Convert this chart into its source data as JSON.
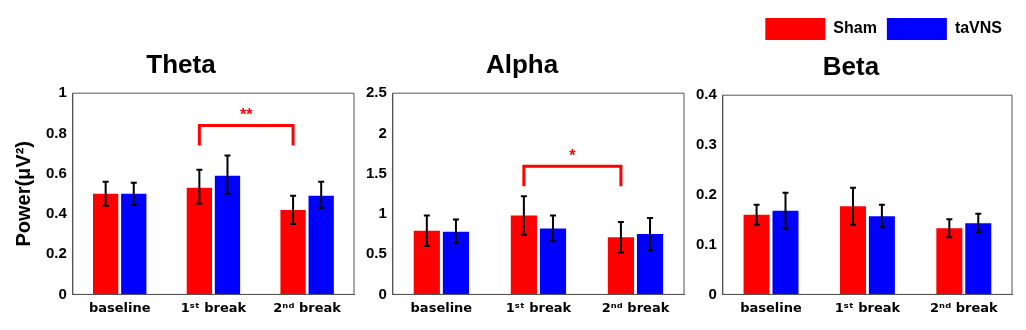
{
  "chart_data": [
    {
      "type": "bar",
      "title": "Theta",
      "ylabel": "Power(μV²)",
      "categories": [
        "baseline",
        "1ˢᵗ break",
        "2ⁿᵈ break"
      ],
      "series": [
        {
          "color": "#ff0000",
          "values": [
            0.5,
            0.53,
            0.42
          ],
          "errors": [
            [
              0.44,
              0.56
            ],
            [
              0.45,
              0.62
            ],
            [
              0.35,
              0.49
            ]
          ]
        },
        {
          "color": "#0000ff",
          "values": [
            0.5,
            0.59,
            0.49
          ],
          "errors": [
            [
              0.445,
              0.555
            ],
            [
              0.5,
              0.69
            ],
            [
              0.43,
              0.56
            ]
          ]
        }
      ],
      "ylim": [
        0,
        1
      ],
      "yticks": [
        0,
        0.2,
        0.4,
        0.6,
        0.8,
        1
      ],
      "grid": false,
      "legend": false,
      "annotations": [
        "**"
      ]
    },
    {
      "type": "bar",
      "title": "Alpha",
      "categories": [
        "baseline",
        "1ˢᵗ break",
        "2ⁿᵈ break"
      ],
      "series": [
        {
          "color": "#ff0000",
          "values": [
            0.79,
            0.98,
            0.71
          ],
          "errors": [
            [
              0.6,
              0.98
            ],
            [
              0.74,
              1.22
            ],
            [
              0.52,
              0.9
            ]
          ]
        },
        {
          "color": "#0000ff",
          "values": [
            0.78,
            0.82,
            0.75
          ],
          "errors": [
            [
              0.64,
              0.93
            ],
            [
              0.66,
              0.98
            ],
            [
              0.55,
              0.95
            ]
          ]
        }
      ],
      "ylim": [
        0,
        2.5
      ],
      "yticks": [
        0,
        0.5,
        1,
        1.5,
        2,
        2.5
      ],
      "grid": false,
      "legend": false,
      "annotations": [
        "*"
      ]
    },
    {
      "type": "bar",
      "title": "Beta",
      "categories": [
        "baseline",
        "1ˢᵗ break",
        "2ⁿᵈ break"
      ],
      "series": [
        {
          "name": "Sham",
          "color": "#ff0000",
          "values": [
            0.16,
            0.177,
            0.133
          ],
          "errors": [
            [
              0.14,
              0.18
            ],
            [
              0.14,
              0.214
            ],
            [
              0.115,
              0.151
            ]
          ]
        },
        {
          "name": "taVNS",
          "color": "#0000ff",
          "values": [
            0.168,
            0.157,
            0.143
          ],
          "errors": [
            [
              0.132,
              0.204
            ],
            [
              0.135,
              0.18
            ],
            [
              0.125,
              0.162
            ]
          ]
        }
      ],
      "ylim": [
        0,
        0.4
      ],
      "yticks": [
        0,
        0.1,
        0.2,
        0.3,
        0.4
      ],
      "grid": false,
      "legend": "top right"
    }
  ]
}
